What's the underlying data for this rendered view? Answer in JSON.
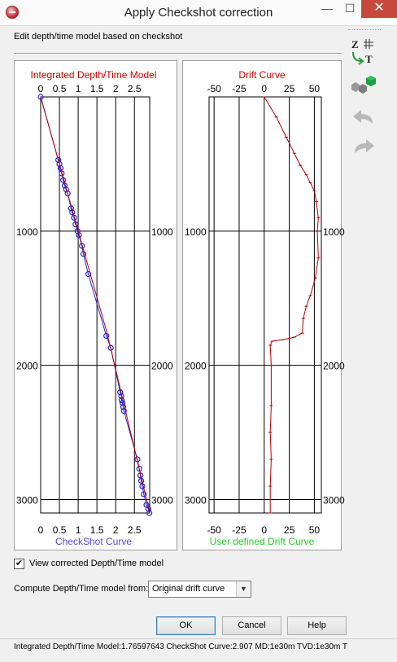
{
  "window": {
    "title": "Apply Checkshot correction",
    "min_glyph": "—",
    "max_glyph": "☐",
    "close_glyph": "✕"
  },
  "subtitle": "Edit depth/time model based on checkshot",
  "toolbar": {
    "icons": [
      "depth-time-grid-icon",
      "cubes-icon",
      "undo-icon",
      "redo-icon"
    ],
    "icon_z": "Z",
    "icon_t": "T"
  },
  "colors": {
    "plot_title": "#cc0000",
    "left_footer": "#4b4bd9",
    "right_footer": "#1fd11f",
    "checkshot_marker": "#2424d8",
    "model_line": "#b50000",
    "drift_line": "#b50000"
  },
  "chart_data": [
    {
      "type": "line",
      "title": "Integrated Depth/Time Model",
      "footer": "CheckShot Curve",
      "x_ticks": [
        "0",
        "0.5",
        "1",
        "1.5",
        "2",
        "2.5"
      ],
      "x_ticks_bottom": [
        "0",
        "0.5",
        "1",
        "1.5",
        "2",
        "2.5"
      ],
      "y_ticks": [
        "1000",
        "2000",
        "3000"
      ],
      "xlim": [
        0,
        2.907
      ],
      "ylim": [
        3100,
        0
      ],
      "grid": true,
      "series": [
        {
          "type": "scatter",
          "x": [
            0.0,
            0.47,
            0.5,
            0.53,
            0.56,
            0.6,
            0.64,
            0.68,
            0.72,
            0.81,
            0.84,
            0.89,
            0.93,
            0.98,
            1.02,
            1.1,
            1.14,
            1.27,
            1.75,
            1.87,
            2.12,
            2.15,
            2.16,
            2.18,
            2.2,
            2.22,
            2.58,
            2.63,
            2.66,
            2.68,
            2.71,
            2.75,
            2.82,
            2.87,
            2.9
          ],
          "y": [
            0,
            470,
            500,
            530,
            570,
            620,
            660,
            690,
            720,
            830,
            860,
            900,
            950,
            1000,
            1030,
            1110,
            1170,
            1320,
            1780,
            1870,
            2200,
            2230,
            2260,
            2280,
            2310,
            2340,
            2700,
            2770,
            2820,
            2860,
            2900,
            2960,
            3040,
            3070,
            3100
          ]
        },
        {
          "type": "line",
          "x": [
            0.0,
            1.0,
            1.77,
            2.907
          ],
          "y": [
            0,
            1000,
            1760,
            3100
          ]
        }
      ]
    },
    {
      "type": "line",
      "title": "Drift Curve",
      "footer": "User defined Drift Curve",
      "x_ticks": [
        "-50",
        "-25",
        "0",
        "25",
        "50"
      ],
      "x_ticks_bottom": [
        "-50",
        "-25",
        "0",
        "25",
        "50"
      ],
      "y_ticks": [
        "1000",
        "2000",
        "3000"
      ],
      "xlim": [
        -55,
        57
      ],
      "ylim": [
        3100,
        0
      ],
      "grid": true,
      "series": [
        {
          "type": "line",
          "x": [
            0,
            12,
            22,
            30,
            36,
            42,
            46,
            50,
            52,
            54,
            53,
            54,
            51,
            46,
            42,
            39,
            38,
            30,
            18,
            8,
            6,
            7,
            7,
            6,
            7,
            6,
            6
          ],
          "y": [
            0,
            150,
            300,
            420,
            510,
            580,
            640,
            700,
            780,
            900,
            1000,
            1200,
            1350,
            1480,
            1560,
            1650,
            1760,
            1790,
            1810,
            1820,
            1850,
            2000,
            2300,
            2500,
            2700,
            2900,
            3100
          ]
        }
      ]
    }
  ],
  "view_corrected_checked": "✔",
  "view_corrected_label": "View corrected Depth/Time model",
  "compute_label": "Compute Depth/Time model from:",
  "compute_value": "Original drift curve",
  "buttons": {
    "ok": "OK",
    "cancel": "Cancel",
    "help": "Help"
  },
  "status": "Integrated Depth/Time Model:1.76597643  CheckShot Curve:2.907  MD:1e30m  TVD:1e30m  T"
}
